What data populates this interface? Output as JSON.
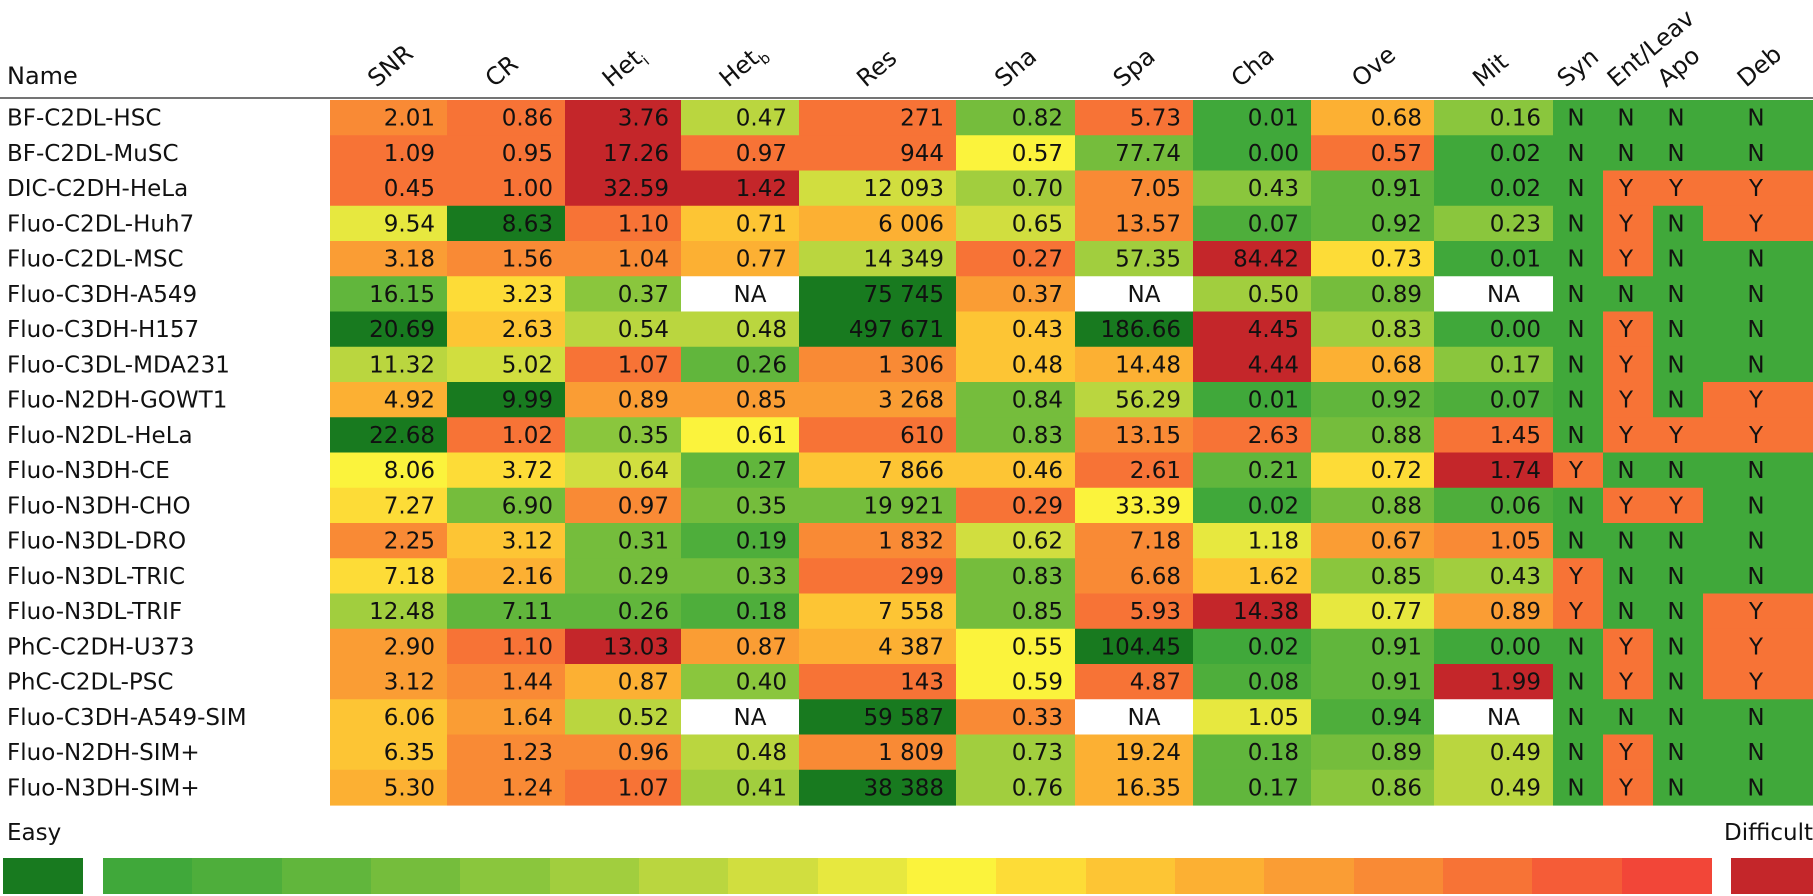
{
  "chart_data": {
    "type": "heatmap",
    "name_header": "Name",
    "columns": [
      "SNR",
      "CR",
      "Het",
      "Het",
      "Res",
      "Sha",
      "Spa",
      "Cha",
      "Ove",
      "Mit",
      "Syn",
      "Ent/Leav",
      "Apo",
      "Deb"
    ],
    "column_subscripts": [
      "",
      "",
      "i",
      "b",
      "",
      "",
      "",
      "",
      "",
      "",
      "",
      "",
      "",
      ""
    ],
    "rows": [
      {
        "name": "BF-C2DL-HSC",
        "values": [
          "2.01",
          "0.86",
          "3.76",
          "0.47",
          "271",
          "0.82",
          "5.73",
          "0.01",
          "0.68",
          "0.16",
          "N",
          "N",
          "N",
          "N"
        ],
        "levels": [
          14,
          15,
          19,
          6,
          15,
          3,
          15,
          0,
          12,
          4,
          0,
          0,
          0,
          0
        ]
      },
      {
        "name": "BF-C2DL-MuSC",
        "values": [
          "1.09",
          "0.95",
          "17.26",
          "0.97",
          "944",
          "0.57",
          "77.74",
          "0.00",
          "0.57",
          "0.02",
          "N",
          "N",
          "N",
          "N"
        ],
        "levels": [
          15,
          15,
          19,
          15,
          15,
          9,
          3,
          0,
          15,
          0,
          0,
          0,
          0,
          0
        ]
      },
      {
        "name": "DIC-C2DH-HeLa",
        "values": [
          "0.45",
          "1.00",
          "32.59",
          "1.42",
          "12 093",
          "0.70",
          "7.05",
          "0.43",
          "0.91",
          "0.02",
          "N",
          "Y",
          "Y",
          "Y"
        ],
        "levels": [
          15,
          15,
          19,
          19,
          7,
          5,
          14,
          4,
          2,
          0,
          0,
          15,
          15,
          15
        ]
      },
      {
        "name": "Fluo-C2DL-Huh7",
        "values": [
          "9.54",
          "8.63",
          "1.10",
          "0.71",
          "6 006",
          "0.65",
          "13.57",
          "0.07",
          "0.92",
          "0.23",
          "N",
          "Y",
          "N",
          "Y"
        ],
        "levels": [
          8,
          -1,
          15,
          11,
          12,
          7,
          14,
          1,
          2,
          4,
          0,
          15,
          0,
          15
        ]
      },
      {
        "name": "Fluo-C2DL-MSC",
        "values": [
          "3.18",
          "1.56",
          "1.04",
          "0.77",
          "14 349",
          "0.27",
          "57.35",
          "84.42",
          "0.73",
          "0.01",
          "N",
          "Y",
          "N",
          "N"
        ],
        "levels": [
          13,
          14,
          14,
          12,
          6,
          15,
          5,
          19,
          10,
          0,
          0,
          15,
          0,
          0
        ]
      },
      {
        "name": "Fluo-C3DH-A549",
        "values": [
          "16.15",
          "3.23",
          "0.37",
          "NA",
          "75 745",
          "0.37",
          "NA",
          "0.50",
          "0.89",
          "NA",
          "N",
          "N",
          "N",
          "N"
        ],
        "levels": [
          2,
          10,
          4,
          "NA",
          -1,
          13,
          "NA",
          5,
          3,
          "NA",
          0,
          0,
          0,
          0
        ]
      },
      {
        "name": "Fluo-C3DH-H157",
        "values": [
          "20.69",
          "2.63",
          "0.54",
          "0.48",
          "497 671",
          "0.43",
          "186.66",
          "4.45",
          "0.83",
          "0.00",
          "N",
          "Y",
          "N",
          "N"
        ],
        "levels": [
          -1,
          11,
          6,
          6,
          -1,
          11,
          -1,
          19,
          5,
          0,
          0,
          15,
          0,
          0
        ]
      },
      {
        "name": "Fluo-C3DL-MDA231",
        "values": [
          "11.32",
          "5.02",
          "1.07",
          "0.26",
          "1 306",
          "0.48",
          "14.48",
          "4.44",
          "0.68",
          "0.17",
          "N",
          "Y",
          "N",
          "N"
        ],
        "levels": [
          6,
          7,
          15,
          2,
          14,
          11,
          12,
          19,
          12,
          4,
          0,
          15,
          0,
          0
        ]
      },
      {
        "name": "Fluo-N2DH-GOWT1",
        "values": [
          "4.92",
          "9.99",
          "0.89",
          "0.85",
          "3 268",
          "0.84",
          "56.29",
          "0.01",
          "0.92",
          "0.07",
          "N",
          "Y",
          "N",
          "Y"
        ],
        "levels": [
          12,
          -1,
          13,
          13,
          13,
          3,
          6,
          0,
          2,
          1,
          0,
          15,
          0,
          15
        ]
      },
      {
        "name": "Fluo-N2DL-HeLa",
        "values": [
          "22.68",
          "1.02",
          "0.35",
          "0.61",
          "610",
          "0.83",
          "13.15",
          "2.63",
          "0.88",
          "1.45",
          "N",
          "Y",
          "Y",
          "Y"
        ],
        "levels": [
          -1,
          15,
          4,
          9,
          15,
          3,
          14,
          15,
          3,
          15,
          0,
          15,
          15,
          15
        ]
      },
      {
        "name": "Fluo-N3DH-CE",
        "values": [
          "8.06",
          "3.72",
          "0.64",
          "0.27",
          "7 866",
          "0.46",
          "2.61",
          "0.21",
          "0.72",
          "1.74",
          "Y",
          "N",
          "N",
          "N"
        ],
        "levels": [
          9,
          10,
          7,
          2,
          11,
          11,
          15,
          2,
          10,
          19,
          15,
          0,
          0,
          0
        ]
      },
      {
        "name": "Fluo-N3DH-CHO",
        "values": [
          "7.27",
          "6.90",
          "0.97",
          "0.35",
          "19 921",
          "0.29",
          "33.39",
          "0.02",
          "0.88",
          "0.06",
          "N",
          "Y",
          "Y",
          "N"
        ],
        "levels": [
          10,
          3,
          14,
          3,
          3,
          15,
          9,
          0,
          3,
          1,
          0,
          15,
          15,
          0
        ]
      },
      {
        "name": "Fluo-N3DL-DRO",
        "values": [
          "2.25",
          "3.12",
          "0.31",
          "0.19",
          "1 832",
          "0.62",
          "7.18",
          "1.18",
          "0.67",
          "1.05",
          "N",
          "N",
          "N",
          "N"
        ],
        "levels": [
          14,
          11,
          3,
          1,
          14,
          7,
          14,
          8,
          13,
          14,
          0,
          0,
          0,
          0
        ]
      },
      {
        "name": "Fluo-N3DL-TRIC",
        "values": [
          "7.18",
          "2.16",
          "0.29",
          "0.33",
          "299",
          "0.83",
          "6.68",
          "1.62",
          "0.85",
          "0.43",
          "Y",
          "N",
          "N",
          "N"
        ],
        "levels": [
          10,
          12,
          3,
          3,
          15,
          3,
          14,
          11,
          4,
          5,
          15,
          0,
          0,
          0
        ]
      },
      {
        "name": "Fluo-N3DL-TRIF",
        "values": [
          "12.48",
          "7.11",
          "0.26",
          "0.18",
          "7 558",
          "0.85",
          "5.93",
          "14.38",
          "0.77",
          "0.89",
          "Y",
          "N",
          "N",
          "Y"
        ],
        "levels": [
          5,
          2,
          2,
          1,
          11,
          3,
          15,
          19,
          8,
          13,
          15,
          0,
          0,
          15
        ]
      },
      {
        "name": "PhC-C2DH-U373",
        "values": [
          "2.90",
          "1.10",
          "13.03",
          "0.87",
          "4 387",
          "0.55",
          "104.45",
          "0.02",
          "0.91",
          "0.00",
          "N",
          "Y",
          "N",
          "Y"
        ],
        "levels": [
          13,
          15,
          19,
          13,
          12,
          9,
          -1,
          0,
          2,
          0,
          0,
          15,
          0,
          15
        ]
      },
      {
        "name": "PhC-C2DL-PSC",
        "values": [
          "3.12",
          "1.44",
          "0.87",
          "0.40",
          "143",
          "0.59",
          "4.87",
          "0.08",
          "0.91",
          "1.99",
          "N",
          "Y",
          "N",
          "Y"
        ],
        "levels": [
          13,
          14,
          12,
          4,
          15,
          9,
          15,
          1,
          2,
          19,
          0,
          15,
          0,
          15
        ]
      },
      {
        "name": "Fluo-C3DH-A549-SIM",
        "values": [
          "6.06",
          "1.64",
          "0.52",
          "NA",
          "59 587",
          "0.33",
          "NA",
          "1.05",
          "0.94",
          "NA",
          "N",
          "N",
          "N",
          "N"
        ],
        "levels": [
          11,
          13,
          6,
          "NA",
          -1,
          14,
          "NA",
          8,
          1,
          "NA",
          0,
          0,
          0,
          0
        ]
      },
      {
        "name": "Fluo-N2DH-SIM+",
        "values": [
          "6.35",
          "1.23",
          "0.96",
          "0.48",
          "1 809",
          "0.73",
          "19.24",
          "0.18",
          "0.89",
          "0.49",
          "N",
          "Y",
          "N",
          "N"
        ],
        "levels": [
          11,
          14,
          14,
          6,
          14,
          5,
          12,
          2,
          3,
          6,
          0,
          15,
          0,
          0
        ]
      },
      {
        "name": "Fluo-N3DH-SIM+",
        "values": [
          "5.30",
          "1.24",
          "1.07",
          "0.41",
          "38 388",
          "0.76",
          "16.35",
          "0.17",
          "0.86",
          "0.49",
          "N",
          "Y",
          "N",
          "N"
        ],
        "levels": [
          12,
          14,
          15,
          5,
          -1,
          5,
          12,
          2,
          4,
          6,
          0,
          15,
          0,
          0
        ]
      }
    ],
    "legend": {
      "low_label": "Easy",
      "high_label": "Difficult",
      "colors": {
        "extreme_easy": "#187a1f",
        "scale": [
          "#40a83a",
          "#4eae3b",
          "#61b63c",
          "#75bd3c",
          "#8ac63d",
          "#a1ce3e",
          "#bad63f",
          "#d1de3f",
          "#e7e83f",
          "#fbf33c",
          "#fddc37",
          "#fdc534",
          "#fcb033",
          "#fa9d34",
          "#f98a35",
          "#f77336",
          "#f55c37",
          "#f24638"
        ],
        "extreme_difficult": "#c4262a",
        "na": "#ffffff"
      }
    }
  }
}
